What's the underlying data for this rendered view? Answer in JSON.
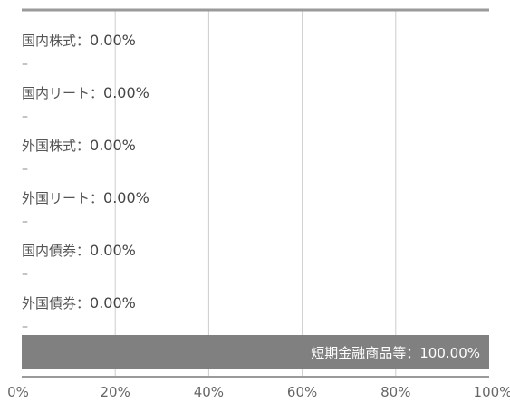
{
  "chart_data": {
    "type": "bar",
    "orientation": "horizontal",
    "stacked": true,
    "xlim": [
      0,
      100
    ],
    "x_ticks": [
      "0%",
      "20%",
      "40%",
      "60%",
      "80%",
      "100%"
    ],
    "grid": true,
    "categories": [
      {
        "name": "国内株式",
        "value": 0.0,
        "label": "0.00%"
      },
      {
        "name": "国内リート",
        "value": 0.0,
        "label": "0.00%"
      },
      {
        "name": "外国株式",
        "value": 0.0,
        "label": "0.00%"
      },
      {
        "name": "外国リート",
        "value": 0.0,
        "label": "0.00%"
      },
      {
        "name": "国内債券",
        "value": 0.0,
        "label": "0.00%"
      },
      {
        "name": "外国債券",
        "value": 0.0,
        "label": "0.00%"
      },
      {
        "name": "短期金融商品等",
        "value": 100.0,
        "label": "100.00%"
      }
    ],
    "dash_marker": "–",
    "separator": "：",
    "colors": {
      "bar": "#808080",
      "grid": "#cccccc",
      "axis": "#9a9a9a",
      "bar_text": "#ffffff"
    }
  }
}
